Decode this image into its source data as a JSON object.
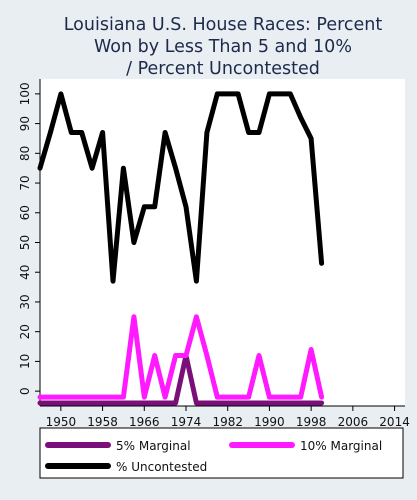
{
  "chart_data": {
    "type": "line",
    "title": [
      "Louisiana U.S. House Races: Percent",
      "Won by Less Than 5 and 10%",
      "/ Percent Uncontested"
    ],
    "xlabel": "",
    "ylabel": "",
    "xlim": [
      1946,
      2016
    ],
    "ylim": [
      -5,
      105
    ],
    "xticks": [
      1950,
      1958,
      1966,
      1974,
      1982,
      1990,
      1998,
      2006,
      2014
    ],
    "yticks": [
      0,
      10,
      20,
      30,
      40,
      50,
      60,
      70,
      80,
      90,
      100
    ],
    "grid": false,
    "legend": "bottom",
    "series": [
      {
        "name": "5% Marginal",
        "color": "#7a0f7a",
        "x": [
          1946,
          1948,
          1950,
          1952,
          1954,
          1956,
          1958,
          1960,
          1962,
          1964,
          1966,
          1968,
          1970,
          1972,
          1974,
          1976,
          1978,
          1980,
          1982,
          1984,
          1986,
          1988,
          1990,
          1992,
          1994,
          1996,
          1998,
          2000
        ],
        "values": [
          -4,
          -4,
          -4,
          -4,
          -4,
          -4,
          -4,
          -4,
          -4,
          -4,
          -4,
          -4,
          -4,
          -4,
          12,
          -4,
          -4,
          -4,
          -4,
          -4,
          -4,
          -4,
          -4,
          -4,
          -4,
          -4,
          -4,
          -4
        ]
      },
      {
        "name": "10% Marginal",
        "color": "#ff1aff",
        "x": [
          1946,
          1948,
          1950,
          1952,
          1954,
          1956,
          1958,
          1960,
          1962,
          1964,
          1966,
          1968,
          1970,
          1972,
          1974,
          1976,
          1978,
          1980,
          1982,
          1984,
          1986,
          1988,
          1990,
          1992,
          1994,
          1996,
          1998,
          2000
        ],
        "values": [
          -2,
          -2,
          -2,
          -2,
          -2,
          -2,
          -2,
          -2,
          -2,
          25,
          -2,
          12,
          -2,
          12,
          12,
          25,
          12,
          -2,
          -2,
          -2,
          -2,
          12,
          -2,
          -2,
          -2,
          -2,
          14,
          -2
        ]
      },
      {
        "name": "% Uncontested",
        "color": "#000000",
        "x": [
          1946,
          1948,
          1950,
          1952,
          1954,
          1956,
          1958,
          1960,
          1962,
          1964,
          1966,
          1968,
          1970,
          1972,
          1974,
          1976,
          1978,
          1980,
          1982,
          1984,
          1986,
          1988,
          1990,
          1992,
          1994,
          1996,
          1998,
          2000
        ],
        "values": [
          75,
          87,
          100,
          87,
          87,
          75,
          87,
          37,
          75,
          50,
          62,
          62,
          87,
          75,
          62,
          37,
          87,
          100,
          100,
          100,
          87,
          87,
          100,
          100,
          100,
          92,
          85,
          43
        ]
      }
    ]
  }
}
